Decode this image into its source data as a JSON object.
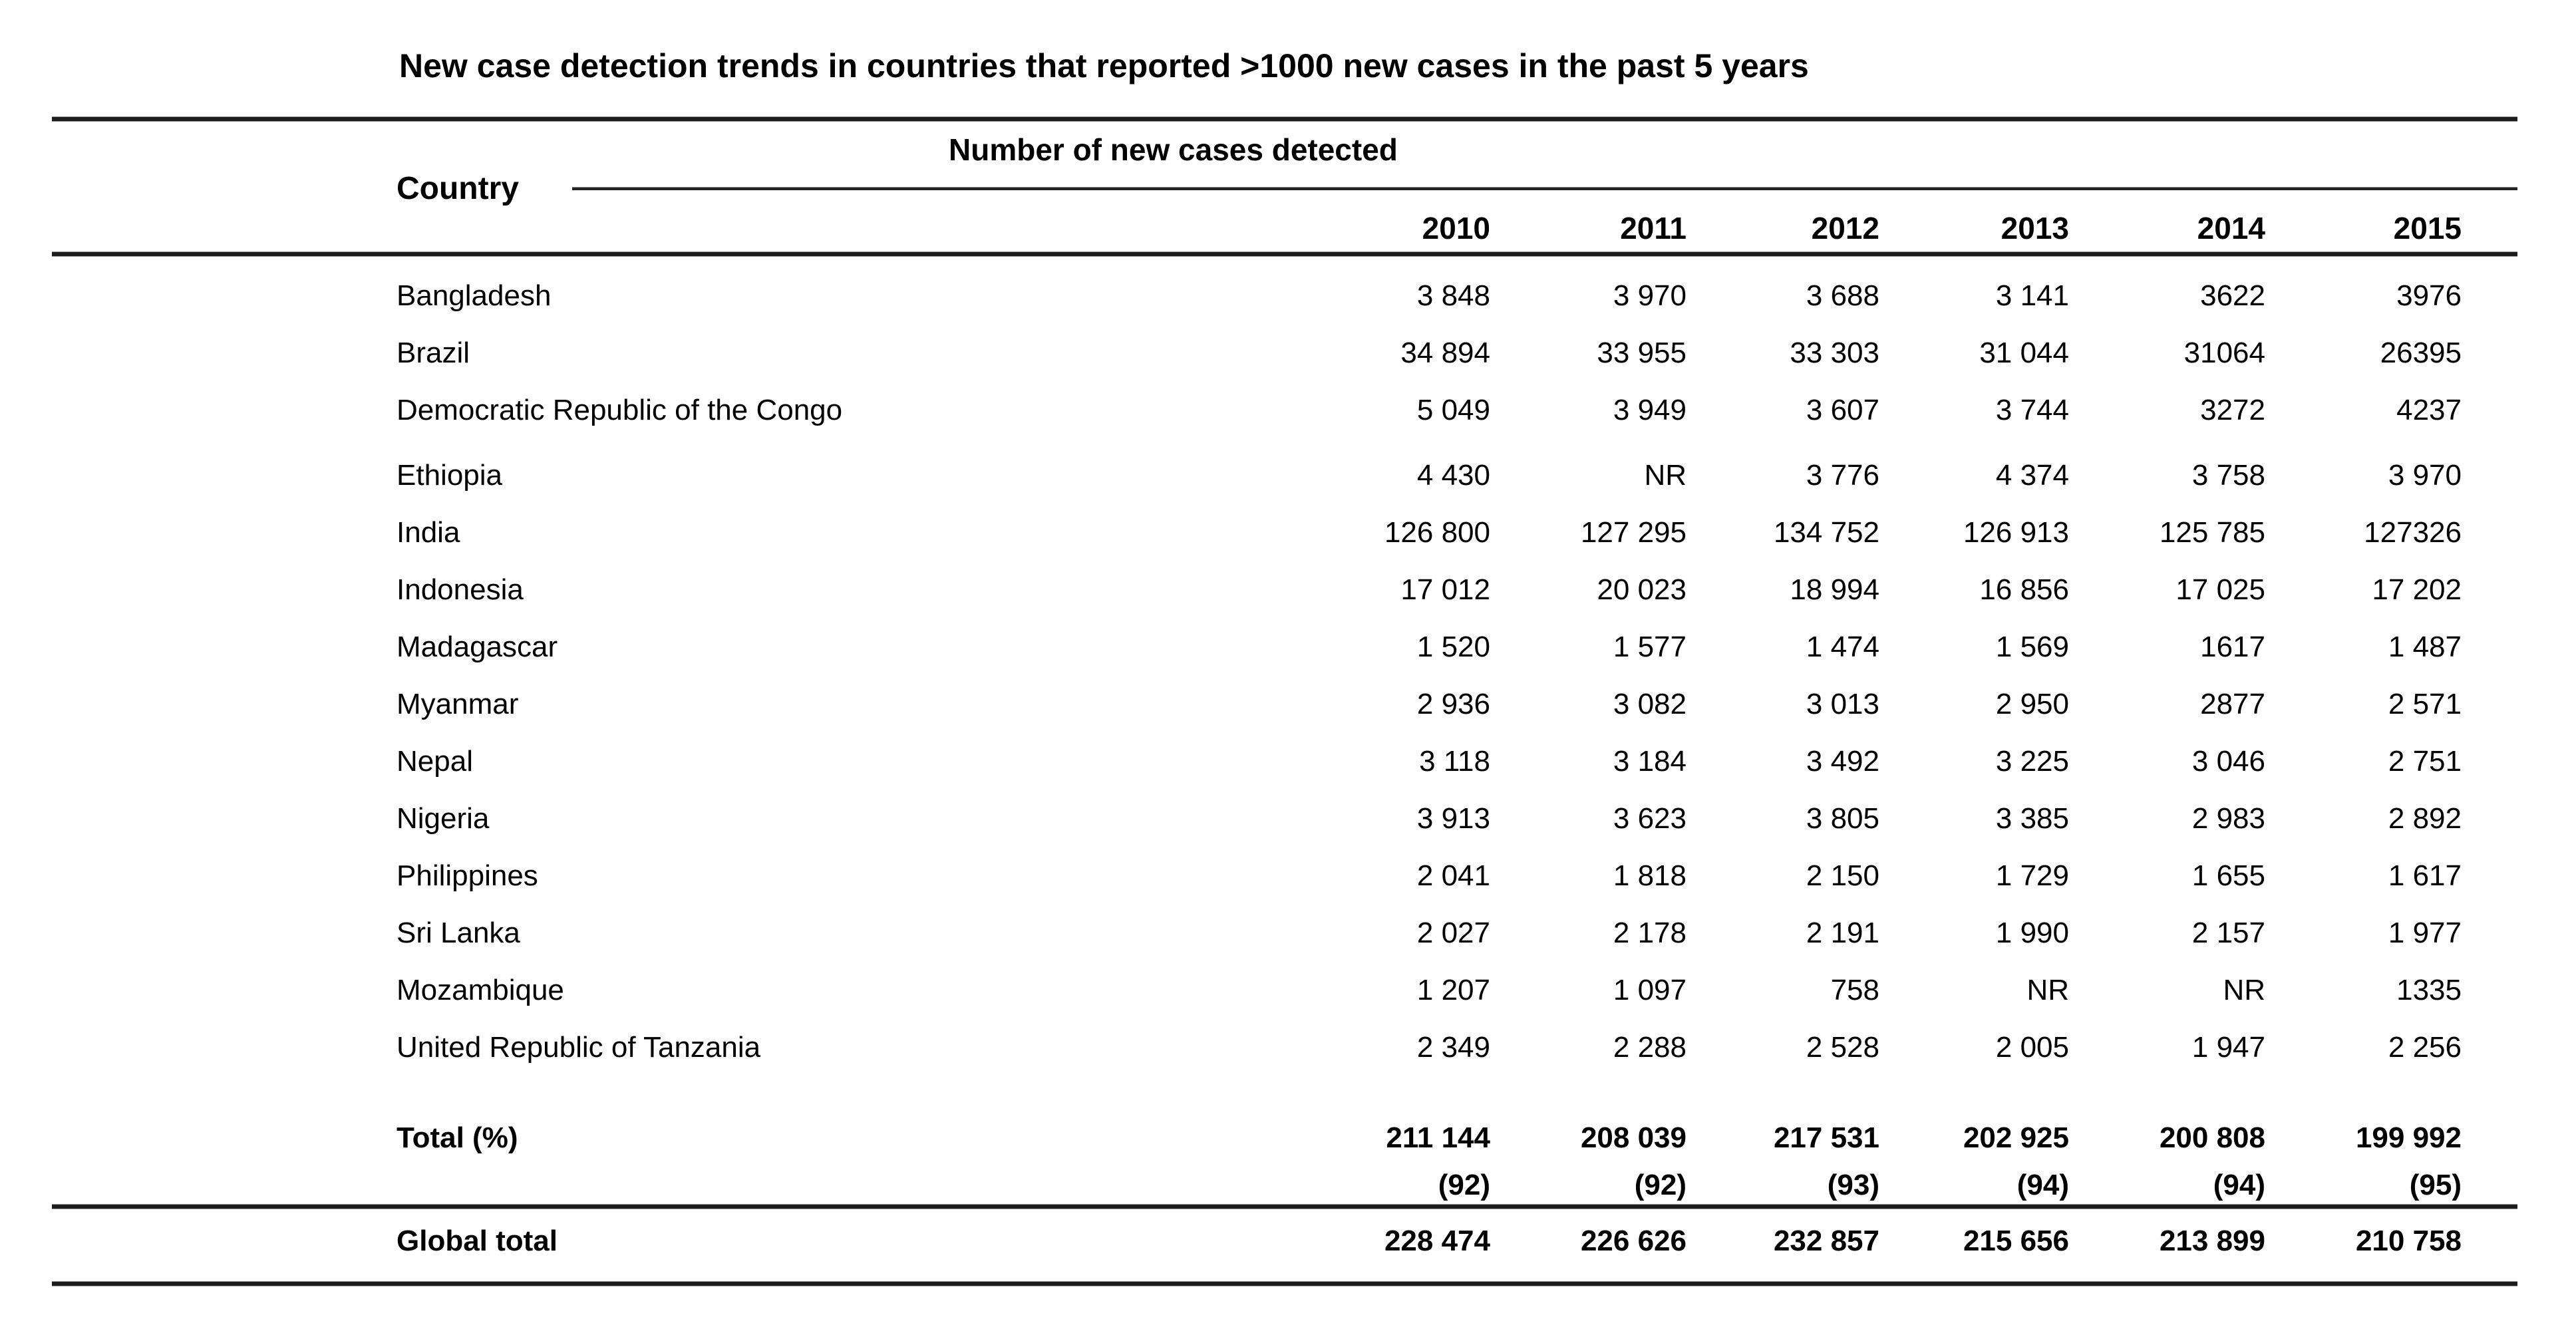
{
  "title": "New case detection trends in countries that reported >1000 new cases in the past 5 years",
  "table": {
    "country_header": "Country",
    "cases_header": "Number of new cases detected",
    "years": [
      "2010",
      "2011",
      "2012",
      "2013",
      "2014",
      "2015"
    ],
    "rows": [
      {
        "country": "Bangladesh",
        "values": [
          "3 848",
          "3 970",
          "3 688",
          "3 141",
          "3622",
          "3976"
        ]
      },
      {
        "country": "Brazil",
        "values": [
          "34 894",
          "33 955",
          "33 303",
          "31 044",
          "31064",
          "26395"
        ]
      },
      {
        "country": "Democratic Republic of the Congo",
        "values": [
          "5 049",
          "3 949",
          "3 607",
          "3 744",
          "3272",
          "4237"
        ]
      },
      {
        "country": "Ethiopia",
        "values": [
          "4 430",
          "NR",
          "3 776",
          "4 374",
          "3 758",
          "3 970"
        ]
      },
      {
        "country": "India",
        "values": [
          "126 800",
          "127 295",
          "134 752",
          "126 913",
          "125 785",
          "127326"
        ]
      },
      {
        "country": "Indonesia",
        "values": [
          "17 012",
          "20 023",
          "18 994",
          "16 856",
          "17 025",
          "17 202"
        ]
      },
      {
        "country": "Madagascar",
        "values": [
          "1 520",
          "1 577",
          "1 474",
          "1 569",
          "1617",
          "1 487"
        ]
      },
      {
        "country": "Myanmar",
        "values": [
          "2 936",
          "3 082",
          "3 013",
          "2 950",
          "2877",
          "2 571"
        ]
      },
      {
        "country": "Nepal",
        "values": [
          "3 118",
          "3 184",
          "3 492",
          "3 225",
          "3 046",
          "2 751"
        ]
      },
      {
        "country": "Nigeria",
        "values": [
          "3 913",
          "3 623",
          "3 805",
          "3 385",
          "2 983",
          "2 892"
        ]
      },
      {
        "country": "Philippines",
        "values": [
          "2 041",
          "1 818",
          "2 150",
          "1 729",
          "1 655",
          "1 617"
        ]
      },
      {
        "country": "Sri Lanka",
        "values": [
          "2 027",
          "2 178",
          "2 191",
          "1 990",
          "2 157",
          "1 977"
        ]
      },
      {
        "country": "Mozambique",
        "values": [
          "1 207",
          "1 097",
          "758",
          "NR",
          "NR",
          "1335"
        ]
      },
      {
        "country": "United Republic of Tanzania",
        "values": [
          "2 349",
          "2 288",
          "2 528",
          "2 005",
          "1 947",
          "2 256"
        ]
      }
    ],
    "group_gap_before_row_index": 3,
    "total_row": {
      "label": "Total (%)",
      "values": [
        "211 144",
        "208 039",
        "217 531",
        "202 925",
        "200 808",
        "199 992"
      ],
      "percents": [
        "(92)",
        "(92)",
        "(93)",
        "(94)",
        "(94)",
        "(95)"
      ]
    },
    "global_row": {
      "label": "Global total",
      "values": [
        "228 474",
        "226 626",
        "232 857",
        "215 656",
        "213 899",
        "210 758"
      ]
    },
    "not_reported_marker": "NR"
  },
  "chart_data": {
    "type": "table",
    "title": "New case detection trends in countries that reported >1000 new cases in the past 5 years",
    "columns": [
      "Country",
      "2010",
      "2011",
      "2012",
      "2013",
      "2014",
      "2015"
    ],
    "rows": [
      [
        "Bangladesh",
        3848,
        3970,
        3688,
        3141,
        3622,
        3976
      ],
      [
        "Brazil",
        34894,
        33955,
        33303,
        31044,
        31064,
        26395
      ],
      [
        "Democratic Republic of the Congo",
        5049,
        3949,
        3607,
        3744,
        3272,
        4237
      ],
      [
        "Ethiopia",
        4430,
        "NR",
        3776,
        4374,
        3758,
        3970
      ],
      [
        "India",
        126800,
        127295,
        134752,
        126913,
        125785,
        127326
      ],
      [
        "Indonesia",
        17012,
        20023,
        18994,
        16856,
        17025,
        17202
      ],
      [
        "Madagascar",
        1520,
        1577,
        1474,
        1569,
        1617,
        1487
      ],
      [
        "Myanmar",
        2936,
        3082,
        3013,
        2950,
        2877,
        2571
      ],
      [
        "Nepal",
        3118,
        3184,
        3492,
        3225,
        3046,
        2751
      ],
      [
        "Nigeria",
        3913,
        3623,
        3805,
        3385,
        2983,
        2892
      ],
      [
        "Philippines",
        2041,
        1818,
        2150,
        1729,
        1655,
        1617
      ],
      [
        "Sri Lanka",
        2027,
        2178,
        2191,
        1990,
        2157,
        1977
      ],
      [
        "Mozambique",
        1207,
        1097,
        758,
        "NR",
        "NR",
        1335
      ],
      [
        "United Republic of Tanzania",
        2349,
        2288,
        2528,
        2005,
        1947,
        2256
      ]
    ],
    "total_pct_of_global": [
      92,
      92,
      93,
      94,
      94,
      95
    ],
    "total": [
      211144,
      208039,
      217531,
      202925,
      200808,
      199992
    ],
    "global_total": [
      228474,
      226626,
      232857,
      215656,
      213899,
      210758
    ]
  },
  "colors": {
    "background": "#ffffff",
    "text": "#000000",
    "rule": "#1c1c1c"
  }
}
